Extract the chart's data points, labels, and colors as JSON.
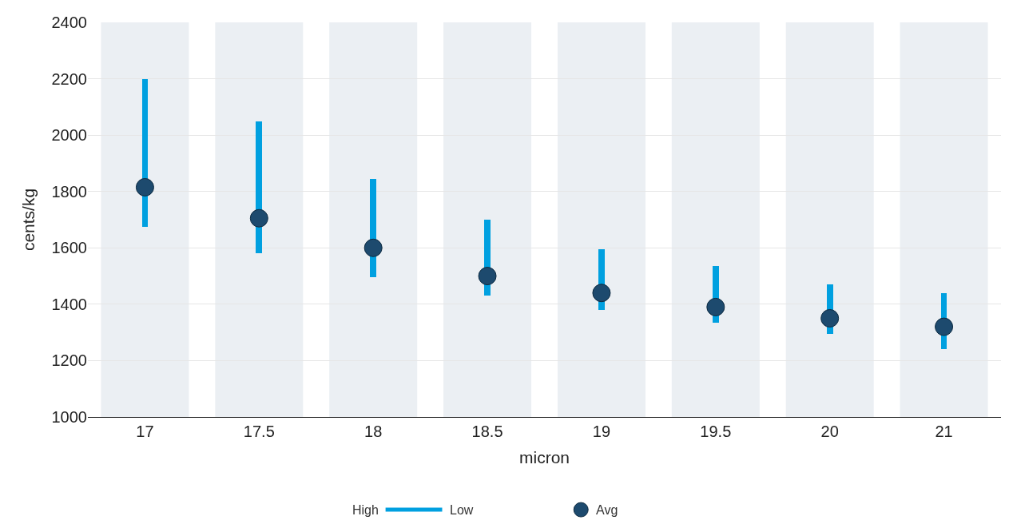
{
  "chart_data": {
    "type": "bar",
    "xlabel": "micron",
    "ylabel": "cents/kg",
    "categories": [
      "17",
      "17.5",
      "18",
      "18.5",
      "19",
      "19.5",
      "20",
      "21"
    ],
    "series": [
      {
        "name": "High Low",
        "color": "#00a0e0",
        "base": [
          1675,
          1580,
          1495,
          1430,
          1380,
          1335,
          1295,
          1240
        ],
        "values": [
          525,
          470,
          350,
          270,
          215,
          200,
          175,
          200
        ]
      },
      {
        "name": "Avg",
        "type": "scatter",
        "color": "#1d4a6e",
        "values": [
          1815,
          1705,
          1600,
          1500,
          1440,
          1390,
          1350,
          1320
        ]
      }
    ],
    "bands": [
      {
        "axis": "x",
        "from": "17",
        "to": "17",
        "color": "#ebeff3"
      },
      {
        "axis": "x",
        "from": "17.5",
        "to": "17.5",
        "color": "#ebeff3"
      },
      {
        "axis": "x",
        "from": "18",
        "to": "18",
        "color": "#ebeff3"
      },
      {
        "axis": "x",
        "from": "18.5",
        "to": "18.5",
        "color": "#ebeff3"
      },
      {
        "axis": "x",
        "from": "19",
        "to": "19",
        "color": "#ebeff3"
      },
      {
        "axis": "x",
        "from": "19.5",
        "to": "19.5",
        "color": "#ebeff3"
      },
      {
        "axis": "x",
        "from": "20",
        "to": "20",
        "color": "#ebeff3"
      },
      {
        "axis": "x",
        "from": "21",
        "to": "21",
        "color": "#ebeff3"
      }
    ],
    "ylim": [
      1000,
      2400
    ],
    "yticks": [
      1000,
      1200,
      1400,
      1600,
      1800,
      2000,
      2200,
      2400
    ],
    "grid": "y",
    "legend": "bottom",
    "marker": "circle"
  }
}
